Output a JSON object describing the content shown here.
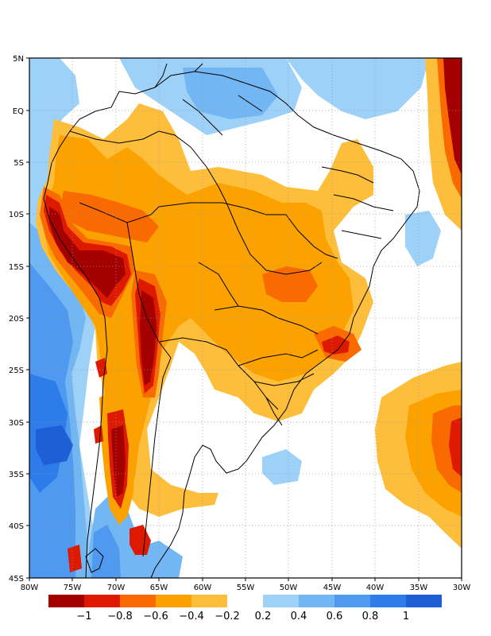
{
  "map": {
    "projection": "lat-lon",
    "lon_range": [
      -80,
      -30
    ],
    "lat_range": [
      -45,
      5
    ],
    "grid_lines": "dotted",
    "y_axis_labels": [
      "5N",
      "EQ",
      "5S",
      "10S",
      "15S",
      "20S",
      "25S",
      "30S",
      "35S",
      "40S",
      "45S"
    ],
    "x_axis_labels": [
      "80W",
      "75W",
      "70W",
      "65W",
      "60W",
      "55W",
      "50W",
      "45W",
      "40W",
      "35W",
      "30W"
    ]
  },
  "colorbar": {
    "negative_colors": [
      "#a50000",
      "#dd1a00",
      "#f96a00",
      "#fba200",
      "#fdbe3c"
    ],
    "positive_colors": [
      "#9dd1f8",
      "#72b6f3",
      "#4f9af0",
      "#2e7cea",
      "#1f5fd6"
    ],
    "negative_labels": [
      "−1",
      "−0.8",
      "−0.6",
      "−0.4",
      "−0.2"
    ],
    "positive_labels": [
      "0.2",
      "0.4",
      "0.6",
      "0.8",
      "1"
    ]
  }
}
